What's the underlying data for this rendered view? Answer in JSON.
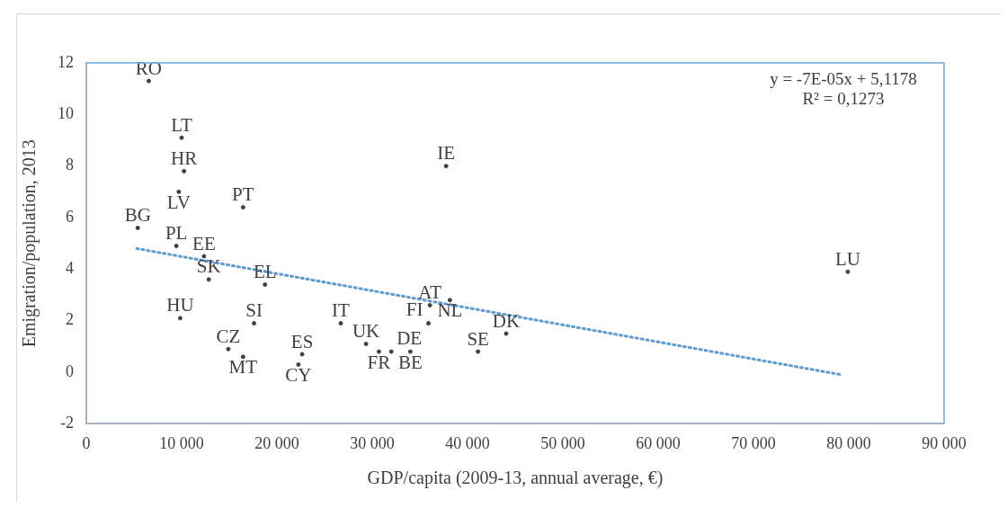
{
  "chart_data": {
    "type": "scatter",
    "xlabel": "GDP/capita (2009-13, annual average, €)",
    "ylabel": "Emigration/population, 2013",
    "series": [
      {
        "type": "scatter",
        "color": "#404040",
        "marker": "circle",
        "x": [
          6550,
          10000,
          10250,
          9700,
          16450,
          5400,
          9450,
          12350,
          12850,
          18750,
          9850,
          17600,
          26700,
          14900,
          16450,
          22650,
          22250,
          29350,
          30700,
          32000,
          34000,
          36050,
          38150,
          35900,
          44050,
          41100,
          37750,
          79900
        ],
        "values": [
          11.3,
          9.1,
          7.8,
          7.0,
          6.4,
          5.6,
          4.9,
          4.5,
          3.6,
          3.4,
          2.1,
          1.9,
          1.9,
          0.9,
          0.6,
          0.7,
          0.3,
          1.1,
          0.8,
          0.8,
          0.8,
          2.6,
          2.8,
          1.9,
          1.5,
          0.8,
          8.0,
          3.9
        ],
        "value_labels": [
          "RO",
          "LT",
          "HR",
          "LV",
          "PT",
          "BG",
          "PL",
          "EE",
          "SK",
          "EL",
          "HU",
          "SI",
          "IT",
          "CZ",
          "MT",
          "ES",
          "CY",
          "UK",
          "FR",
          "DE",
          "BE",
          "AT",
          "NL",
          "FI",
          "DK",
          "SE",
          "IE",
          "LU"
        ]
      },
      {
        "type": "line",
        "color": "#5b9bd5",
        "line_style": "dotted",
        "marker": "none",
        "x": [
          5300,
          79300
        ],
        "values": [
          4.8,
          -0.1
        ]
      }
    ],
    "annotations": [
      "y = -7E-05x + 5,1178",
      "R² = 0,1273"
    ],
    "xlim": [
      0,
      90000
    ],
    "xticks": [
      0,
      {
        "value": 10000,
        "label": "10 000"
      },
      {
        "value": 20000,
        "label": "20 000"
      },
      {
        "value": 30000,
        "label": "30 000"
      },
      {
        "value": 40000,
        "label": "40 000"
      },
      {
        "value": 50000,
        "label": "50 000"
      },
      {
        "value": 60000,
        "label": "60 000"
      },
      {
        "value": 70000,
        "label": "70 000"
      },
      {
        "value": 80000,
        "label": "80 000"
      },
      {
        "value": 90000,
        "label": "90 000"
      }
    ],
    "ylim": [
      -2,
      12
    ],
    "yticks": [
      -2,
      0,
      2,
      4,
      6,
      8,
      10,
      12
    ],
    "grid": false,
    "legend": false
  }
}
